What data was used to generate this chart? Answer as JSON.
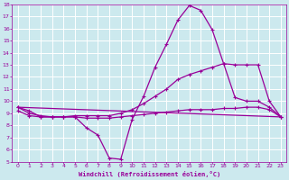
{
  "title": "",
  "xlabel": "Windchill (Refroidissement éolien,°C)",
  "xlim": [
    -0.5,
    23.5
  ],
  "ylim": [
    5,
    18
  ],
  "yticks": [
    5,
    6,
    7,
    8,
    9,
    10,
    11,
    12,
    13,
    14,
    15,
    16,
    17,
    18
  ],
  "xticks": [
    0,
    1,
    2,
    3,
    4,
    5,
    6,
    7,
    8,
    9,
    10,
    11,
    12,
    13,
    14,
    15,
    16,
    17,
    18,
    19,
    20,
    21,
    22,
    23
  ],
  "bg_color": "#cce9ee",
  "line_color": "#990099",
  "grid_color": "#ffffff",
  "line1_x": [
    0,
    1,
    2,
    3,
    4,
    5,
    6,
    7,
    8,
    9,
    10,
    11,
    12,
    13,
    14,
    15,
    16,
    17,
    18,
    19,
    20,
    21,
    22,
    23
  ],
  "line1_y": [
    9.5,
    9.2,
    8.7,
    8.7,
    8.7,
    8.7,
    7.8,
    7.2,
    5.3,
    5.2,
    8.5,
    10.4,
    12.8,
    14.7,
    16.7,
    17.9,
    17.5,
    15.9,
    13.1,
    10.3,
    10.0,
    10.0,
    9.5,
    8.7
  ],
  "line2_x": [
    0,
    1,
    2,
    3,
    4,
    5,
    6,
    7,
    8,
    9,
    10,
    11,
    12,
    13,
    14,
    15,
    16,
    17,
    18,
    19,
    20,
    21,
    22,
    23
  ],
  "line2_y": [
    9.5,
    9.0,
    8.8,
    8.7,
    8.7,
    8.8,
    8.8,
    8.8,
    8.8,
    9.0,
    9.3,
    9.8,
    10.4,
    11.0,
    11.8,
    12.2,
    12.5,
    12.8,
    13.1,
    13.0,
    13.0,
    13.0,
    10.0,
    8.7
  ],
  "line3_x": [
    0,
    1,
    2,
    3,
    4,
    5,
    6,
    7,
    8,
    9,
    10,
    11,
    12,
    13,
    14,
    15,
    16,
    17,
    18,
    19,
    20,
    21,
    22,
    23
  ],
  "line3_y": [
    9.2,
    8.8,
    8.7,
    8.7,
    8.7,
    8.7,
    8.6,
    8.6,
    8.6,
    8.7,
    8.8,
    8.9,
    9.0,
    9.1,
    9.2,
    9.3,
    9.3,
    9.3,
    9.4,
    9.4,
    9.5,
    9.5,
    9.3,
    8.7
  ],
  "line4_x": [
    0,
    23
  ],
  "line4_y": [
    9.5,
    8.7
  ],
  "marker": "+",
  "markersize": 3,
  "linewidth": 0.9
}
